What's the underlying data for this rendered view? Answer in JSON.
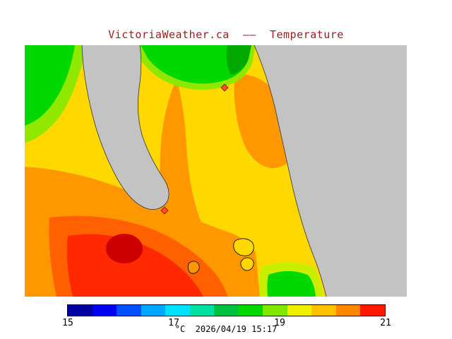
{
  "title": "VictoriaWeather.ca  ——  Temperature",
  "colorbar": {
    "ticks": [
      "15",
      "17",
      "19",
      "21"
    ],
    "caption": "°C  2026/04/19 15:17",
    "colors": [
      "#0000a0",
      "#0000f0",
      "#0050ff",
      "#00a8ff",
      "#00e0ff",
      "#00e0a0",
      "#00c040",
      "#00d800",
      "#80e800",
      "#f0f000",
      "#ffc000",
      "#ff8800",
      "#ff1800"
    ]
  },
  "palette": {
    "green_dark": "#00a800",
    "green": "#00d800",
    "green_light": "#90e800",
    "yellow_green": "#c8ee00",
    "yellow": "#ffd800",
    "orange": "#ff9800",
    "orange_deep": "#ff6000",
    "red": "#ff2800",
    "red_dark": "#cc0000",
    "gray": "#c3c3c3",
    "marker": "#ff5028",
    "title_color": "#992020"
  }
}
